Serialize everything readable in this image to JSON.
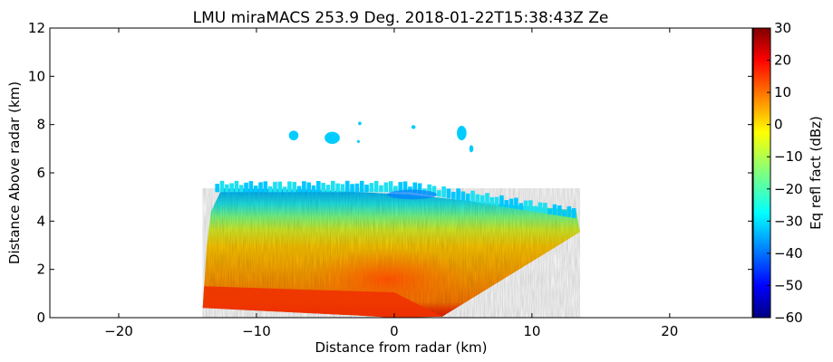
{
  "chart_data": {
    "type": "heatmap",
    "title": "LMU miraMACS 253.9 Deg. 2018-01-22T15:38:43Z  Ze",
    "xlabel": "Distance from radar (km)",
    "ylabel": "Distance Above radar  (km)",
    "xlim": [
      -25,
      26
    ],
    "ylim": [
      0,
      12
    ],
    "xticks": [
      -20,
      -10,
      0,
      10,
      20
    ],
    "xtick_labels": [
      "−20",
      "−10",
      "0",
      "10",
      "20"
    ],
    "yticks": [
      0,
      2,
      4,
      6,
      8,
      10,
      12
    ],
    "ytick_labels": [
      "0",
      "2",
      "4",
      "6",
      "8",
      "10",
      "12"
    ],
    "grid": false,
    "colorbar": {
      "label": "Eq refl fact (dBz)",
      "range": [
        -60,
        30
      ],
      "ticks": [
        30,
        20,
        10,
        0,
        -10,
        -20,
        -30,
        -40,
        -50,
        -60
      ],
      "tick_labels": [
        "30",
        "20",
        "10",
        "0",
        "−10",
        "−20",
        "−30",
        "−40",
        "−50",
        "−60"
      ],
      "colormap": "jet",
      "colors": [
        "#00007f",
        "#0000ff",
        "#007fff",
        "#00ffff",
        "#7fff7f",
        "#ffff00",
        "#ff7f00",
        "#ff0000",
        "#7f0000"
      ]
    },
    "echo_regions": [
      {
        "name": "near-surface band",
        "x_range": [
          -14,
          3.5
        ],
        "y_range": [
          0,
          1.3
        ],
        "ze_dbz": 20
      },
      {
        "name": "lower cloud",
        "x_range": [
          -14,
          13.5
        ],
        "y_range": [
          1.3,
          3.5
        ],
        "ze_dbz": 10
      },
      {
        "name": "mid cloud",
        "x_range": [
          -13.5,
          13.5
        ],
        "y_range": [
          3.5,
          4.6
        ],
        "ze_dbz": -10
      },
      {
        "name": "cloud top",
        "x_range": [
          -13,
          13
        ],
        "y_range": [
          4.6,
          5.5
        ],
        "ze_dbz": -28
      },
      {
        "name": "upper ice patches",
        "x_range": [
          -7.5,
          6
        ],
        "y_range": [
          6.8,
          8.1
        ],
        "ze_dbz": -30
      }
    ]
  }
}
